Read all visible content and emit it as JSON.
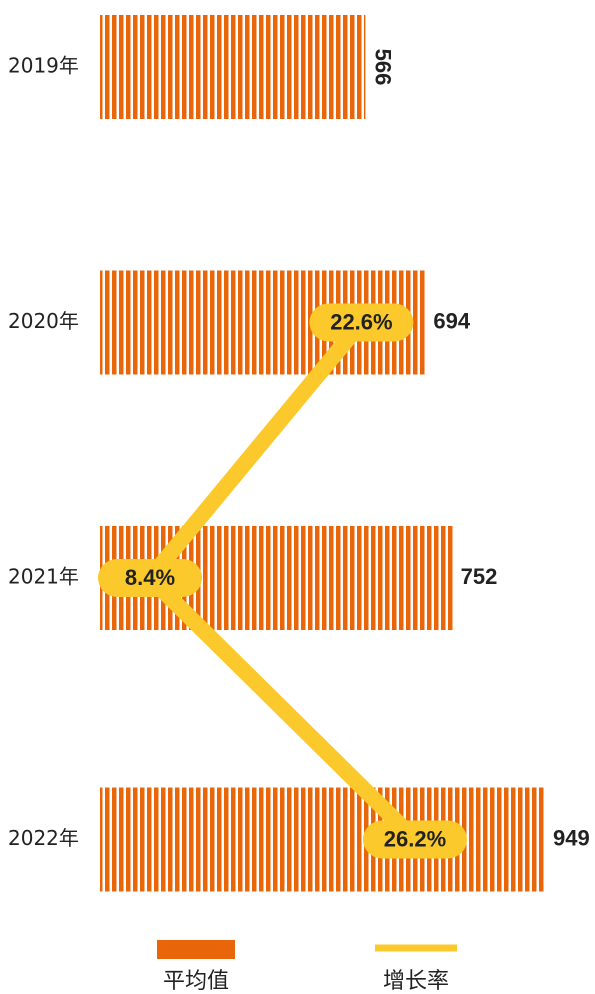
{
  "chart_data": {
    "type": "bar-line",
    "categories": [
      "2019年",
      "2020年",
      "2021年",
      "2022年"
    ],
    "series": [
      {
        "name": "平均值",
        "color": "#e8650a",
        "values": [
          566,
          694,
          752,
          949
        ]
      },
      {
        "name": "增长率",
        "color": "#fbc92b",
        "values": [
          null,
          22.6,
          8.4,
          26.2
        ],
        "value_labels": [
          null,
          "22.6%",
          "8.4%",
          "26.2%"
        ]
      }
    ]
  }
}
